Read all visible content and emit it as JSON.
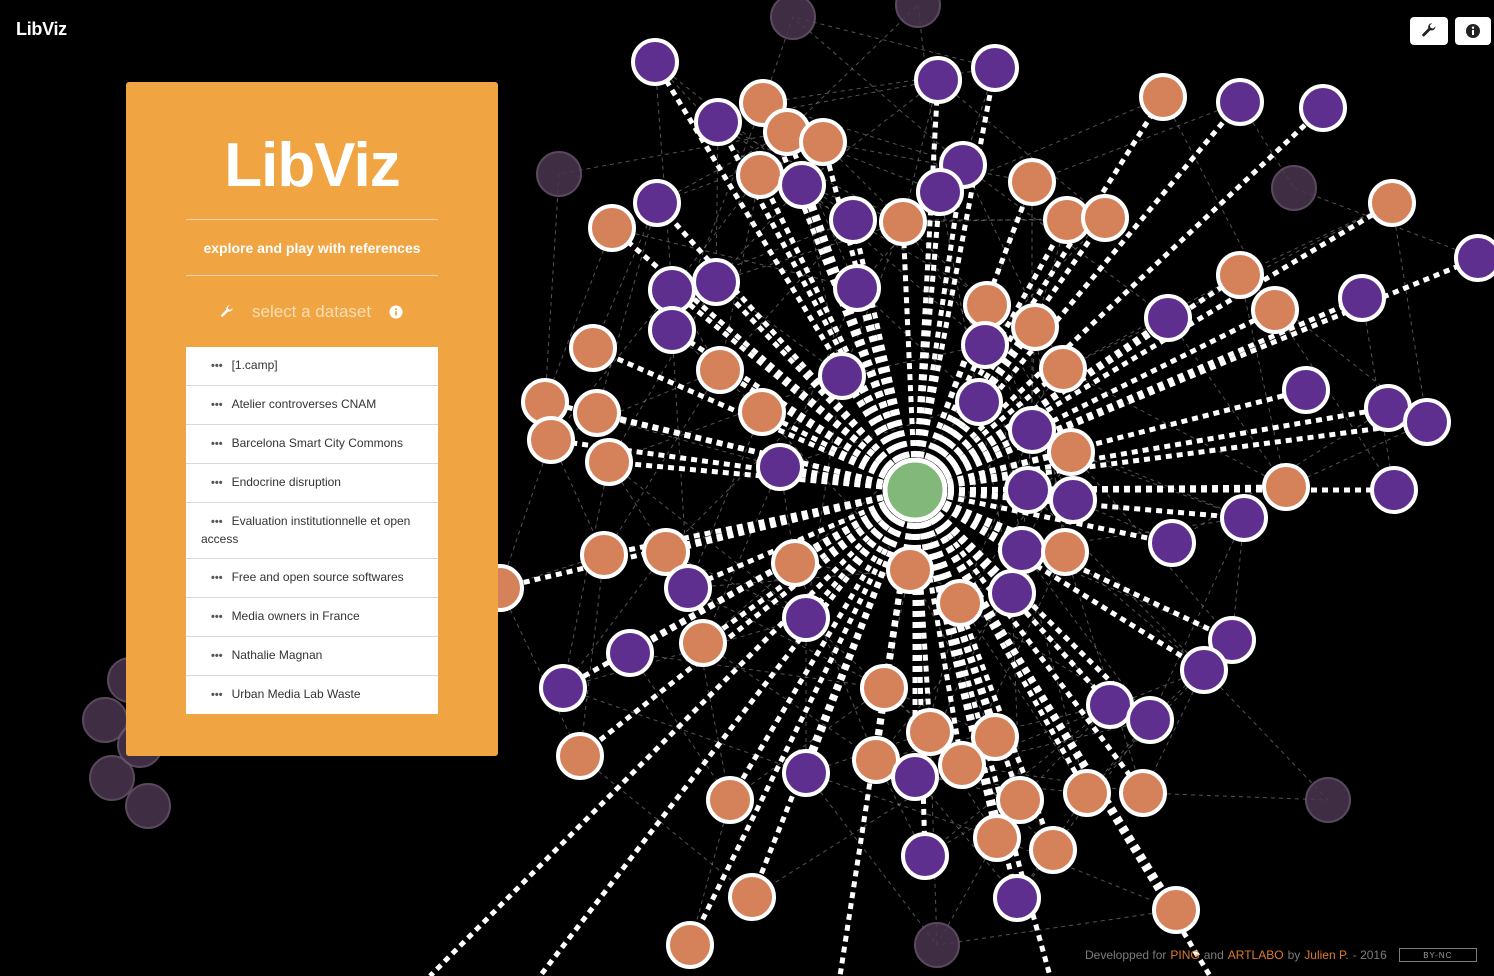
{
  "app": {
    "brand": "LibViz"
  },
  "toolbar": {
    "settings_icon": "wrench-icon",
    "info_icon": "info-icon"
  },
  "panel": {
    "title": "LibViz",
    "subtitle": "explore and play with references",
    "select_label": "select a dataset",
    "datasets": [
      "[1.camp]",
      "Atelier controverses CNAM",
      "Barcelona Smart City Commons",
      "Endocrine disruption",
      "Evaluation institutionnelle et open access",
      "Free and open source softwares",
      "Media owners in France",
      "Nathalie Magnan",
      "Urban Media Lab Waste"
    ]
  },
  "footer": {
    "prefix": "Developped for",
    "org1": "PING",
    "and": "and",
    "org2": "ARTLABO",
    "by": "by",
    "author": "Julien P.",
    "year": "- 2016",
    "license": "BY-NC"
  },
  "colors": {
    "background": "#000000",
    "panel": "#f0a442",
    "orange_node": "#d5825a",
    "purple_node": "#5e2f8e",
    "center_node": "#82b97a",
    "faded_node": "#4a3550"
  }
}
